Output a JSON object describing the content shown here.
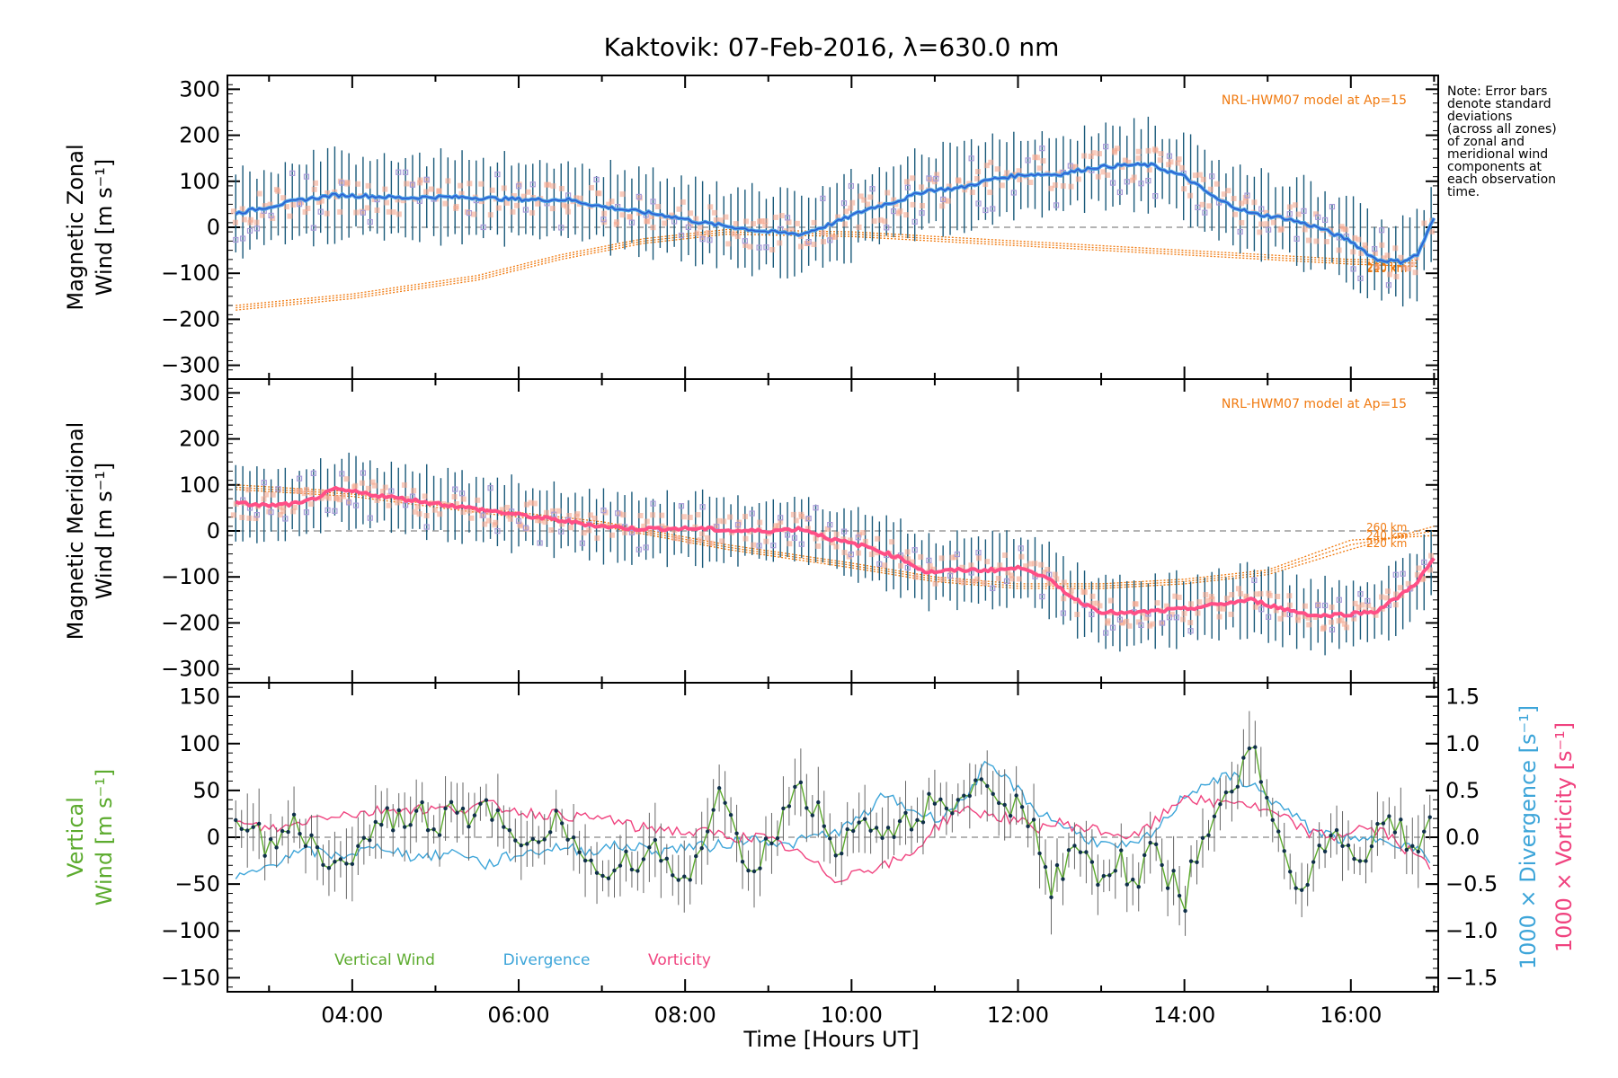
{
  "title": "Kaktovik: 07-Feb-2016, λ=630.0 nm",
  "xlabel": "Time [Hours UT]",
  "note_lines": [
    "Note: Error bars",
    "denote standard",
    "deviations",
    "(across all zones)",
    "of zonal and",
    "meridional wind",
    "components at",
    "each observation",
    "time."
  ],
  "colors": {
    "zonal_mean": "#4aa0e6",
    "zonal_mean_dark": "#1e3ec8",
    "meridional_mean": "#ff4f86",
    "vertical": "#5cab2e",
    "divergence": "#3da5d9",
    "vorticity": "#f0437f",
    "model": "#f07a10",
    "zone_points": "#a79ad8",
    "zone_salmon": "#f6a890",
    "errorbar": "#1a5a7a",
    "errorbar_vertical": "#666666",
    "zero_line": "#888888"
  },
  "chart_data": [
    {
      "type": "line",
      "id": "zonal",
      "ylabel_lines": [
        "Magnetic Zonal",
        "Wind [m s⁻¹]"
      ],
      "ylim": [
        -330,
        330
      ],
      "yticks": [
        -300,
        -200,
        -100,
        0,
        100,
        200,
        300
      ],
      "xlim": [
        2.5,
        17.05
      ],
      "xticks": [
        "04:00",
        "06:00",
        "08:00",
        "10:00",
        "12:00",
        "14:00",
        "16:00"
      ],
      "xtick_values": [
        4,
        6,
        8,
        10,
        12,
        14,
        16
      ],
      "model_label": "NRL-HWM07 model at Ap=15",
      "model_alt_labels": [
        "260 km",
        "240 km",
        "220 km"
      ],
      "series": [
        {
          "name": "Magnetic Zonal Wind (mean)",
          "x": [
            2.6,
            3.0,
            3.4,
            3.8,
            4.2,
            4.6,
            5.0,
            5.4,
            5.8,
            6.2,
            6.6,
            7.0,
            7.4,
            7.8,
            8.2,
            8.6,
            9.0,
            9.4,
            9.8,
            10.2,
            10.6,
            10.9,
            11.3,
            11.7,
            12.1,
            12.5,
            12.9,
            13.3,
            13.6,
            14.0,
            14.4,
            14.8,
            15.2,
            15.6,
            16.0,
            16.3,
            16.6,
            16.8,
            17.0
          ],
          "y": [
            30,
            45,
            60,
            70,
            68,
            64,
            66,
            65,
            62,
            60,
            60,
            45,
            35,
            25,
            10,
            0,
            -10,
            -15,
            10,
            40,
            60,
            80,
            85,
            105,
            115,
            115,
            130,
            135,
            135,
            110,
            60,
            30,
            20,
            0,
            -30,
            -70,
            -75,
            -60,
            20
          ]
        }
      ],
      "model_series": [
        {
          "x": [
            2.6,
            4.0,
            5.5,
            6.5,
            7.5,
            8.5,
            10.0,
            11.0,
            12.0,
            13.0,
            14.0,
            15.0,
            16.0,
            16.8
          ],
          "y": [
            -180,
            -155,
            -115,
            -70,
            -35,
            -15,
            -20,
            -30,
            -40,
            -50,
            -60,
            -70,
            -80,
            -85
          ]
        },
        {
          "x": [
            2.6,
            4.0,
            5.5,
            6.5,
            7.5,
            8.5,
            10.0,
            11.0,
            12.0,
            13.0,
            14.0,
            15.0,
            16.0,
            16.8
          ],
          "y": [
            -175,
            -150,
            -110,
            -65,
            -30,
            -10,
            -15,
            -25,
            -35,
            -45,
            -55,
            -65,
            -75,
            -78
          ]
        },
        {
          "x": [
            2.6,
            4.0,
            5.5,
            6.5,
            7.5,
            8.5,
            10.0,
            11.0,
            12.0,
            13.0,
            14.0,
            15.0,
            16.0,
            16.8
          ],
          "y": [
            -170,
            -145,
            -105,
            -60,
            -25,
            -5,
            -10,
            -20,
            -30,
            -40,
            -50,
            -60,
            -70,
            -72
          ]
        }
      ],
      "errorbar_halfwidth": 85
    },
    {
      "type": "line",
      "id": "meridional",
      "ylabel_lines": [
        "Magnetic Meridional",
        "Wind [m s⁻¹]"
      ],
      "ylim": [
        -330,
        330
      ],
      "yticks": [
        -300,
        -200,
        -100,
        0,
        100,
        200,
        300
      ],
      "xlim": [
        2.5,
        17.05
      ],
      "model_label": "NRL-HWM07 model at Ap=15",
      "model_alt_labels": [
        "260 km",
        "240 km",
        "220 km"
      ],
      "series": [
        {
          "name": "Magnetic Meridional Wind (mean)",
          "x": [
            2.6,
            3.0,
            3.4,
            3.8,
            4.2,
            4.6,
            5.0,
            5.4,
            5.8,
            6.2,
            6.6,
            7.0,
            7.4,
            7.8,
            8.2,
            8.6,
            9.0,
            9.4,
            9.8,
            10.2,
            10.6,
            10.9,
            11.3,
            11.7,
            12.1,
            12.4,
            12.7,
            13.0,
            13.3,
            13.6,
            14.0,
            14.4,
            14.8,
            15.2,
            15.6,
            16.0,
            16.3,
            16.6,
            16.8,
            17.0
          ],
          "y": [
            60,
            55,
            60,
            90,
            80,
            70,
            60,
            50,
            40,
            30,
            20,
            10,
            5,
            5,
            5,
            0,
            0,
            5,
            -20,
            -35,
            -60,
            -90,
            -85,
            -85,
            -80,
            -110,
            -150,
            -175,
            -180,
            -175,
            -170,
            -160,
            -150,
            -170,
            -185,
            -180,
            -175,
            -140,
            -110,
            -60
          ]
        }
      ],
      "model_series": [
        {
          "x": [
            2.6,
            4.0,
            5.5,
            7.0,
            8.5,
            10.0,
            11.0,
            12.0,
            13.0,
            14.0,
            15.0,
            16.0,
            17.0
          ],
          "y": [
            90,
            75,
            40,
            10,
            -40,
            -80,
            -110,
            -125,
            -125,
            -115,
            -95,
            -40,
            10
          ]
        },
        {
          "x": [
            2.6,
            4.0,
            5.5,
            7.0,
            8.5,
            10.0,
            11.0,
            12.0,
            13.0,
            14.0,
            15.0,
            16.0,
            17.0
          ],
          "y": [
            95,
            80,
            45,
            15,
            -35,
            -75,
            -105,
            -120,
            -120,
            -110,
            -90,
            -30,
            0
          ]
        },
        {
          "x": [
            2.6,
            4.0,
            5.5,
            7.0,
            8.5,
            10.0,
            11.0,
            12.0,
            13.0,
            14.0,
            15.0,
            16.0,
            17.0
          ],
          "y": [
            100,
            85,
            50,
            20,
            -30,
            -70,
            -100,
            -115,
            -115,
            -105,
            -85,
            -20,
            -10
          ]
        }
      ],
      "errorbar_halfwidth": 70
    },
    {
      "type": "line",
      "id": "vertical",
      "ylabel_lines": [
        "Vertical",
        "Wind [m s⁻¹]"
      ],
      "ylim": [
        -165,
        165
      ],
      "yticks": [
        -150,
        -100,
        -50,
        0,
        50,
        100,
        150
      ],
      "xlim": [
        2.5,
        17.05
      ],
      "y2label_lines": [
        "1000 × Divergence [s⁻¹]",
        "1000 × Vorticity [s⁻¹]"
      ],
      "y2lim": [
        -1.65,
        1.65
      ],
      "y2ticks": [
        "-1.5",
        "-1.0",
        "-0.5",
        "0.0",
        "0.5",
        "1.0",
        "1.5"
      ],
      "y2tick_values": [
        -1.5,
        -1.0,
        -0.5,
        0.0,
        0.5,
        1.0,
        1.5
      ],
      "legend": [
        "Vertical Wind",
        "Divergence",
        "Vorticity"
      ],
      "series": [
        {
          "name": "Vertical Wind",
          "x": [
            2.6,
            2.8,
            3.0,
            3.2,
            3.4,
            3.6,
            3.8,
            4.0,
            4.2,
            4.4,
            4.6,
            4.8,
            5.0,
            5.2,
            5.4,
            5.6,
            5.8,
            6.0,
            6.2,
            6.4,
            6.6,
            6.8,
            7.0,
            7.2,
            7.4,
            7.6,
            7.8,
            8.0,
            8.2,
            8.4,
            8.6,
            8.8,
            9.0,
            9.2,
            9.4,
            9.6,
            9.8,
            10.0,
            10.2,
            10.4,
            10.6,
            10.8,
            11.0,
            11.2,
            11.4,
            11.6,
            11.8,
            12.0,
            12.2,
            12.4,
            12.6,
            12.8,
            13.0,
            13.2,
            13.4,
            13.6,
            13.8,
            14.0,
            14.2,
            14.4,
            14.6,
            14.8,
            15.0,
            15.2,
            15.4,
            15.6,
            15.8,
            16.0,
            16.2,
            16.4,
            16.6,
            16.8,
            17.0
          ],
          "y": [
            20,
            10,
            -10,
            20,
            5,
            -20,
            -30,
            -25,
            0,
            20,
            15,
            30,
            5,
            45,
            20,
            40,
            10,
            -20,
            -10,
            20,
            10,
            -10,
            -35,
            -20,
            -30,
            10,
            -30,
            -40,
            -20,
            70,
            10,
            -40,
            -10,
            30,
            50,
            30,
            -30,
            15,
            10,
            -5,
            25,
            20,
            45,
            10,
            60,
            50,
            35,
            40,
            10,
            -50,
            -25,
            -15,
            -45,
            -20,
            -60,
            -10,
            -40,
            -70,
            5,
            20,
            50,
            110,
            30,
            -20,
            -50,
            -20,
            5,
            -10,
            -30,
            25,
            10,
            -20,
            40
          ]
        },
        {
          "name": "Divergence",
          "axis": "y2",
          "x": [
            2.6,
            2.9,
            3.2,
            3.5,
            3.8,
            4.1,
            4.4,
            4.7,
            5.0,
            5.3,
            5.6,
            5.9,
            6.2,
            6.5,
            6.8,
            7.1,
            7.4,
            7.7,
            8.0,
            8.3,
            8.6,
            8.9,
            9.2,
            9.5,
            9.8,
            10.1,
            10.4,
            10.7,
            11.0,
            11.3,
            11.6,
            11.9,
            12.2,
            12.5,
            12.8,
            13.1,
            13.4,
            13.7,
            14.0,
            14.3,
            14.6,
            14.9,
            15.2,
            15.5,
            15.8,
            16.1,
            16.4,
            16.7,
            17.0
          ],
          "y": [
            -0.45,
            -0.35,
            -0.2,
            -0.15,
            -0.2,
            -0.15,
            -0.1,
            -0.2,
            -0.2,
            -0.15,
            -0.3,
            -0.2,
            -0.15,
            -0.1,
            -0.15,
            -0.1,
            -0.1,
            -0.15,
            -0.1,
            -0.1,
            -0.05,
            0.0,
            -0.1,
            0.0,
            0.05,
            0.2,
            0.45,
            0.3,
            0.2,
            0.35,
            0.75,
            0.6,
            0.3,
            0.15,
            0.0,
            -0.1,
            -0.1,
            0.1,
            0.45,
            0.6,
            0.65,
            0.5,
            0.3,
            0.1,
            0.0,
            -0.05,
            0.0,
            -0.1,
            -0.25
          ]
        },
        {
          "name": "Vorticity",
          "axis": "y2",
          "x": [
            2.6,
            2.9,
            3.2,
            3.5,
            3.8,
            4.1,
            4.4,
            4.7,
            5.0,
            5.3,
            5.6,
            5.9,
            6.2,
            6.5,
            6.8,
            7.1,
            7.4,
            7.7,
            8.0,
            8.3,
            8.6,
            8.9,
            9.2,
            9.5,
            9.8,
            10.1,
            10.4,
            10.7,
            11.0,
            11.3,
            11.6,
            11.9,
            12.2,
            12.5,
            12.8,
            13.1,
            13.4,
            13.7,
            14.0,
            14.3,
            14.6,
            14.9,
            15.2,
            15.5,
            15.8,
            16.1,
            16.4,
            16.7,
            17.0
          ],
          "y": [
            0.15,
            0.1,
            0.1,
            0.2,
            0.25,
            0.25,
            0.3,
            0.3,
            0.3,
            0.3,
            0.35,
            0.3,
            0.25,
            0.25,
            0.2,
            0.2,
            0.1,
            0.1,
            0.05,
            0.05,
            0.0,
            0.0,
            -0.1,
            -0.25,
            -0.45,
            -0.35,
            -0.3,
            -0.2,
            0.1,
            0.3,
            0.25,
            0.2,
            0.1,
            0.15,
            0.1,
            0.05,
            0.0,
            0.2,
            0.45,
            0.35,
            0.4,
            0.3,
            0.2,
            0.05,
            0.0,
            0.1,
            0.05,
            -0.15,
            -0.35
          ]
        }
      ]
    }
  ]
}
